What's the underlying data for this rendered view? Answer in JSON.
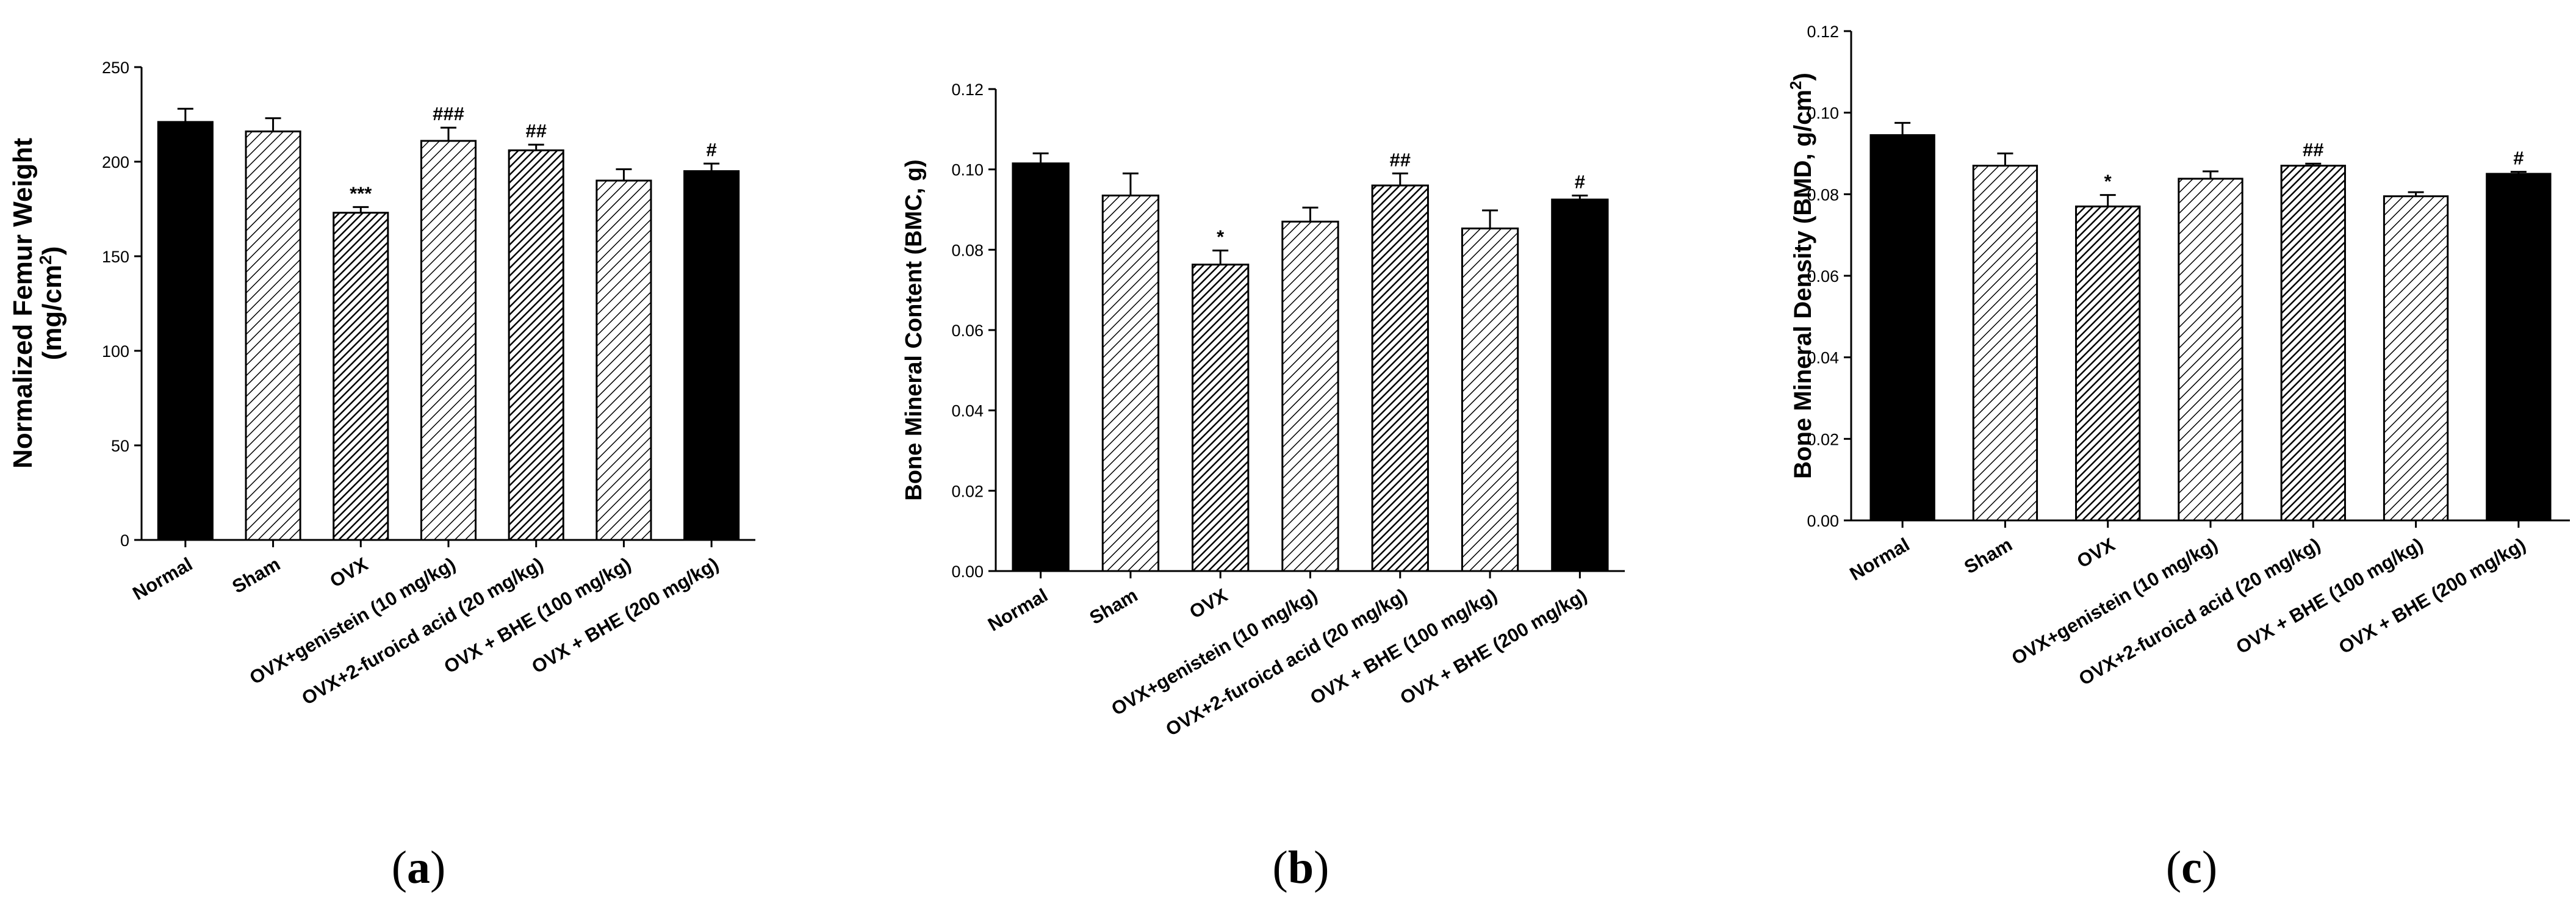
{
  "colors": {
    "solid": "#000000",
    "dark_hatch": "#3a3a3a",
    "light_hatch": "#ffffff",
    "stroke": "#000000"
  },
  "chart_data": [
    {
      "type": "bar",
      "panel_label": "a",
      "ylabel_lines": [
        "Normalized Femur Weight",
        "(mg/cm",
        "2",
        ")"
      ],
      "ylim": [
        0,
        250
      ],
      "yticks": [
        0,
        50,
        100,
        150,
        200,
        250
      ],
      "ytick_labels": [
        "0",
        "50",
        "100",
        "150",
        "200",
        "250"
      ],
      "categories": [
        "Normal",
        "Sham",
        "OVX",
        "OVX+genistein (10 mg/kg)",
        "OVX+2-furoicd acid (20 mg/kg)",
        "OVX + BHE (100 mg/kg)",
        "OVX + BHE (200 mg/kg)"
      ],
      "values": [
        221,
        216,
        173,
        211,
        206,
        190,
        195
      ],
      "errors": [
        7,
        7,
        3,
        7,
        3,
        6,
        4
      ],
      "fills": [
        "solid",
        "light",
        "dark",
        "light",
        "dark",
        "light",
        "solid"
      ],
      "annotations": [
        "",
        "",
        "***",
        "###",
        "##",
        "",
        "#"
      ]
    },
    {
      "type": "bar",
      "panel_label": "b",
      "ylabel_lines": [
        "Bone Mineral Content (BMC, g)"
      ],
      "ylim": [
        0,
        0.12
      ],
      "yticks": [
        0,
        0.02,
        0.04,
        0.06,
        0.08,
        0.1,
        0.12
      ],
      "ytick_labels": [
        "0.00",
        "0.02",
        "0.04",
        "0.06",
        "0.08",
        "0.10",
        "0.12"
      ],
      "categories": [
        "Normal",
        "Sham",
        "OVX",
        "OVX+genistein (10 mg/kg)",
        "OVX+2-furoicd acid (20 mg/kg)",
        "OVX + BHE (100 mg/kg)",
        "OVX + BHE (200 mg/kg)"
      ],
      "values": [
        0.1015,
        0.0935,
        0.0763,
        0.087,
        0.096,
        0.0853,
        0.0925
      ],
      "errors": [
        0.0025,
        0.0055,
        0.0035,
        0.0035,
        0.003,
        0.0045,
        0.001
      ],
      "fills": [
        "solid",
        "light",
        "dark",
        "light",
        "dark",
        "light",
        "solid"
      ],
      "annotations": [
        "",
        "",
        "*",
        "",
        "##",
        "",
        "#"
      ]
    },
    {
      "type": "bar",
      "panel_label": "c",
      "ylabel_lines": [
        "Bone Mineral Density (BMD, g/cm",
        "2",
        ")"
      ],
      "ylim": [
        0,
        0.12
      ],
      "yticks": [
        0,
        0.02,
        0.04,
        0.06,
        0.08,
        0.1,
        0.12
      ],
      "ytick_labels": [
        "0.00",
        "0.02",
        "0.04",
        "0.06",
        "0.08",
        "0.10",
        "0.12"
      ],
      "categories": [
        "Normal",
        "Sham",
        "OVX",
        "OVX+genistein (10 mg/kg)",
        "OVX+2-furoicd acid (20 mg/kg)",
        "OVX + BHE (100 mg/kg)",
        "OVX + BHE (200 mg/kg)"
      ],
      "values": [
        0.0945,
        0.087,
        0.077,
        0.0838,
        0.087,
        0.0795,
        0.085
      ],
      "errors": [
        0.003,
        0.003,
        0.0028,
        0.0018,
        0.0005,
        0.001,
        0.0005
      ],
      "fills": [
        "solid",
        "light",
        "dark",
        "light",
        "dark",
        "light",
        "solid"
      ],
      "annotations": [
        "",
        "",
        "*",
        "",
        "##",
        "",
        "#"
      ]
    }
  ]
}
